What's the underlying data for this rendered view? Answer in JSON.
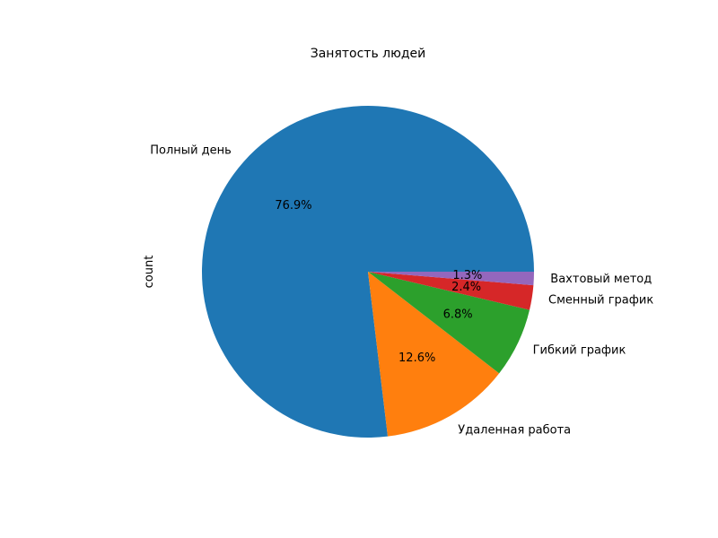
{
  "chart_data": {
    "type": "pie",
    "title": "Занятость людей",
    "ylabel": "count",
    "start_angle_deg": 0,
    "direction": "counterclockwise",
    "slices": [
      {
        "label": "Полный день",
        "pct": 76.9,
        "pct_label": "76.9%",
        "color": "#1f77b4"
      },
      {
        "label": "Удаленная работа",
        "pct": 12.6,
        "pct_label": "12.6%",
        "color": "#ff7f0e"
      },
      {
        "label": "Гибкий график",
        "pct": 6.8,
        "pct_label": "6.8%",
        "color": "#2ca02c"
      },
      {
        "label": "Сменный график",
        "pct": 2.4,
        "pct_label": "2.4%",
        "color": "#d62728"
      },
      {
        "label": "Вахтовый метод",
        "pct": 1.3,
        "pct_label": "1.3%",
        "color": "#9467bd"
      }
    ]
  }
}
